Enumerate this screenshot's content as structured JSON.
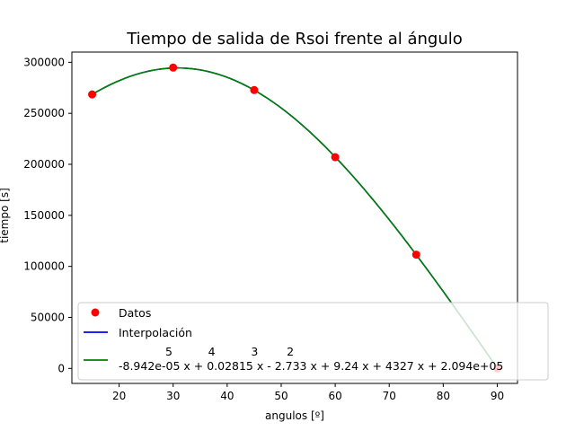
{
  "chart_data": {
    "type": "scatter",
    "title": "Tiempo de salida de Rsoi frente al ángulo",
    "xlabel": "angulos [º]",
    "ylabel": "tiempo [s]",
    "xlim": [
      11.25,
      93.75
    ],
    "ylim": [
      -14700,
      310000
    ],
    "x_ticks": [
      20,
      30,
      40,
      50,
      60,
      70,
      80,
      90
    ],
    "y_ticks": [
      0,
      50000,
      100000,
      150000,
      200000,
      250000,
      300000
    ],
    "grid": false,
    "legend_position": "lower-right",
    "series": [
      {
        "name": "Datos",
        "kind": "points",
        "color": "#ff0000",
        "x": [
          15,
          30,
          45,
          60,
          75,
          90
        ],
        "y": [
          268500,
          294800,
          272800,
          207000,
          111500,
          0
        ]
      },
      {
        "name": "Interpolación",
        "kind": "line",
        "color": "#0000ff",
        "x": [
          15,
          90
        ],
        "coefficients": [
          -8.942e-05,
          0.02815,
          -2.733,
          9.24,
          4327,
          209400
        ]
      },
      {
        "name": "-8.942e-05 x + 0.02815 x - 2.733 x + 9.24 x + 4327 x + 2.094e+05",
        "exponents_line": "5          4          3        2",
        "kind": "line",
        "color": "#008000",
        "x": [
          15,
          90
        ],
        "coefficients": [
          -8.942e-05,
          0.02815,
          -2.733,
          9.24,
          4327,
          209400
        ]
      }
    ]
  }
}
